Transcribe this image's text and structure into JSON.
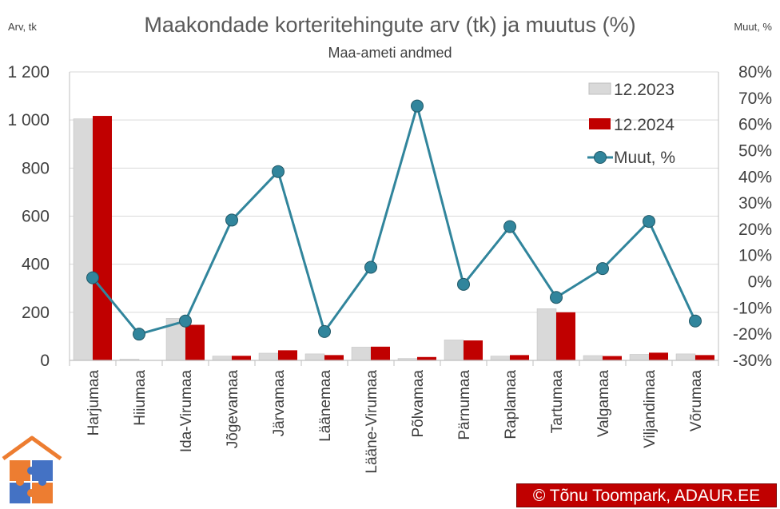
{
  "chart_data": {
    "type": "bar",
    "title": "Maakondade korteritehingute arv (tk) ja muutus (%)",
    "subtitle": "Maa-ameti andmed",
    "ylabel_left": "Arv, tk",
    "ylabel_right": "Muut, %",
    "categories": [
      "Harjumaa",
      "Hiiumaa",
      "Ida-Virumaa",
      "Jõgevamaa",
      "Järvamaa",
      "Läänemaa",
      "Lääne-Virumaa",
      "Põlvamaa",
      "Pärnumaa",
      "Raplamaa",
      "Tartumaa",
      "Valgamaa",
      "Viljandimaa",
      "Võrumaa"
    ],
    "series": [
      {
        "name": "12.2023",
        "axis": "left",
        "type": "bar",
        "color": "#d9d9d9",
        "values": [
          1005,
          5,
          175,
          18,
          30,
          27,
          55,
          8,
          85,
          18,
          215,
          20,
          25,
          27
        ]
      },
      {
        "name": "12.2024",
        "axis": "left",
        "type": "bar",
        "color": "#c00000",
        "values": [
          1017,
          0,
          148,
          19,
          42,
          22,
          57,
          14,
          83,
          22,
          200,
          18,
          32,
          22
        ]
      },
      {
        "name": "Muut, %",
        "axis": "right",
        "type": "line",
        "color": "#31859c",
        "values": [
          1.5,
          -20,
          -15,
          23.5,
          42,
          -19,
          5.5,
          67,
          -1,
          21,
          -6,
          5,
          23,
          -15
        ]
      }
    ],
    "ylim_left": [
      0,
      1200
    ],
    "ylim_right": [
      -30,
      80
    ],
    "yticks_left": [
      0,
      200,
      400,
      600,
      800,
      1000,
      1200
    ],
    "yticks_left_labels": [
      "0",
      "200",
      "400",
      "600",
      "800",
      "1 000",
      "1 200"
    ],
    "yticks_right": [
      -30,
      -20,
      -10,
      0,
      10,
      20,
      30,
      40,
      50,
      60,
      70,
      80
    ],
    "yticks_right_labels": [
      "-30%",
      "-20%",
      "-10%",
      "0%",
      "10%",
      "20%",
      "30%",
      "40%",
      "50%",
      "60%",
      "70%",
      "80%"
    ],
    "grid": true,
    "legend_position": "top-right"
  },
  "credit": "© Tõnu Toompark, ADAUR.EE",
  "logo": {
    "name": "house-puzzle-logo",
    "roof_color": "#ed7d31",
    "piece_colors": [
      "#ed7d31",
      "#4472c4"
    ]
  }
}
